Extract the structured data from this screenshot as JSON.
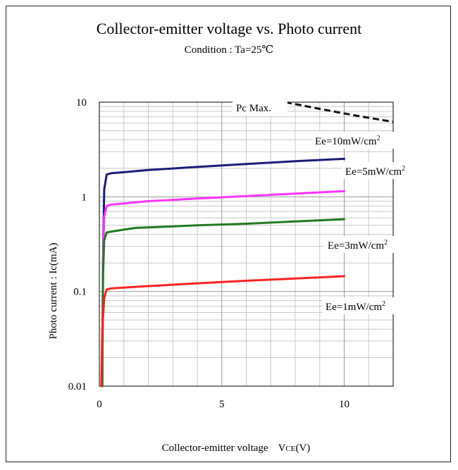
{
  "chart_data": {
    "type": "line",
    "title": "Collector-emitter voltage  vs. Photo current",
    "subtitle": "Condition : Ta=25℃",
    "xlabel_main": "Collector-emitter voltage",
    "xlabel_symbol": "V",
    "xlabel_sub": "CE",
    "xlabel_unit": "(V)",
    "ylabel": "Photo current : Ic(mA)",
    "y_scale": "log",
    "xlim": [
      0,
      12
    ],
    "ylim": [
      0.01,
      10
    ],
    "grid": true,
    "x_ticks": [
      "0",
      "5",
      "10"
    ],
    "y_ticks": [
      "0.01",
      "0.1",
      "1",
      "10"
    ],
    "series": [
      {
        "name": "Ee=10mW/cm",
        "sup": "2",
        "color": "#1b1b7a",
        "points": [
          [
            0.12,
            0.01
          ],
          [
            0.15,
            0.2
          ],
          [
            0.2,
            1.2
          ],
          [
            0.3,
            1.72
          ],
          [
            0.5,
            1.78
          ],
          [
            1,
            1.82
          ],
          [
            2,
            1.92
          ],
          [
            4,
            2.07
          ],
          [
            6,
            2.22
          ],
          [
            8,
            2.38
          ],
          [
            10,
            2.52
          ]
        ]
      },
      {
        "name": "Ee=5mW/cm",
        "sup": "2",
        "color": "#ff33ff",
        "points": [
          [
            0.12,
            0.01
          ],
          [
            0.15,
            0.2
          ],
          [
            0.2,
            0.62
          ],
          [
            0.3,
            0.8
          ],
          [
            0.5,
            0.83
          ],
          [
            1,
            0.85
          ],
          [
            2,
            0.9
          ],
          [
            4,
            0.96
          ],
          [
            6,
            1.02
          ],
          [
            8,
            1.08
          ],
          [
            10,
            1.15
          ]
        ]
      },
      {
        "name": "Ee=3mW/cm",
        "sup": "2",
        "color": "#1f7a1f",
        "points": [
          [
            0.12,
            0.01
          ],
          [
            0.15,
            0.15
          ],
          [
            0.2,
            0.35
          ],
          [
            0.3,
            0.42
          ],
          [
            0.5,
            0.43
          ],
          [
            1,
            0.45
          ],
          [
            1.5,
            0.47
          ],
          [
            2,
            0.475
          ],
          [
            4,
            0.5
          ],
          [
            6,
            0.52
          ],
          [
            8,
            0.55
          ],
          [
            10,
            0.58
          ]
        ]
      },
      {
        "name": "Ee=1mW/cm",
        "sup": "2",
        "color": "#ff2222",
        "points": [
          [
            0.08,
            0.01
          ],
          [
            0.12,
            0.04
          ],
          [
            0.2,
            0.085
          ],
          [
            0.3,
            0.105
          ],
          [
            0.5,
            0.108
          ],
          [
            1,
            0.11
          ],
          [
            2,
            0.114
          ],
          [
            4,
            0.122
          ],
          [
            6,
            0.13
          ],
          [
            8,
            0.137
          ],
          [
            10,
            0.145
          ]
        ]
      }
    ],
    "pc_max": {
      "label": "Pc Max.",
      "color": "#111111",
      "points": [
        [
          7.6,
          10
        ],
        [
          9,
          8.5
        ],
        [
          10.5,
          7.2
        ],
        [
          12,
          6.2
        ]
      ]
    }
  }
}
